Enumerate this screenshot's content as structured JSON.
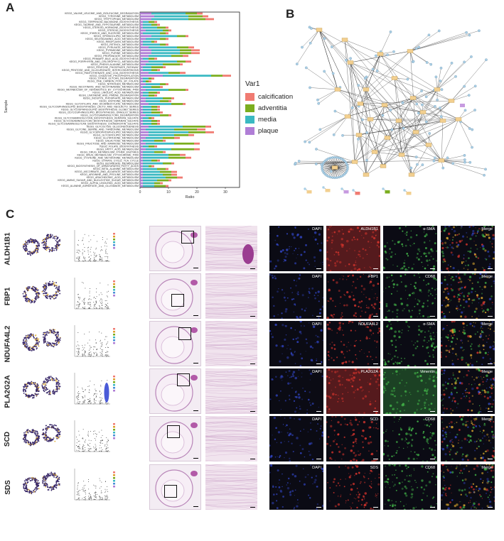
{
  "panels": {
    "a": "A",
    "b": "B",
    "c": "C"
  },
  "colors": {
    "calcification": "#F07B72",
    "adventitia": "#7BAE1F",
    "media": "#3BB9C2",
    "plaque": "#B07ED6",
    "node": "#a9cfe6",
    "hub": "#f2cf8f",
    "if_dapi": "#3347c8",
    "if_red": "#e0362e",
    "if_green": "#46c04c"
  },
  "legend": {
    "title": "Var1",
    "items": [
      {
        "label": "calcification",
        "color": "#F07B72"
      },
      {
        "label": "adventitia",
        "color": "#7BAE1F"
      },
      {
        "label": "media",
        "color": "#3BB9C2"
      },
      {
        "label": "plaque",
        "color": "#B07ED6"
      }
    ]
  },
  "chart_data": {
    "type": "bar",
    "orientation": "horizontal",
    "stacked": true,
    "xlabel": "Ratio",
    "ylabel": "Sample",
    "xlim": [
      0,
      35
    ],
    "xticks": [
      0,
      10,
      20,
      30
    ],
    "series_order": [
      "plaque",
      "media",
      "adventitia",
      "calcification"
    ],
    "categories": [
      "KEGG_VALINE_LEUCINE_AND_ISOLEUCINE_DEGRADATION",
      "KEGG_TYROSINE_METABOLISM",
      "KEGG_TRYPTOPHAN_METABOLISM",
      "KEGG_TERPENOID_BACKBONE_BIOSYNTHESIS",
      "KEGG_TAURINE_AND_HYPOTAURINE_METABOLISM",
      "KEGG_STEROID_HORMONE_BIOSYNTHESIS",
      "KEGG_STEROID_BIOSYNTHESIS",
      "KEGG_STARCH_AND_SUCROSE_METABOLISM",
      "KEGG_SPHINGOLIPID_METABOLISM",
      "KEGG_SELENOAMINO_ACID_METABOLISM",
      "KEGG_RIBOFLAVIN_METABOLISM",
      "KEGG_RETINOL_METABOLISM",
      "KEGG_PYRUVATE_METABOLISM",
      "KEGG_PYRIMIDINE_METABOLISM",
      "KEGG_PURINE_METABOLISM",
      "KEGG_PROPANOATE_METABOLISM",
      "KEGG_PRIMARY_BILE_ACID_BIOSYNTHESIS",
      "KEGG_PORPHYRIN_AND_CHLOROPHYLL_METABOLISM",
      "KEGG_PHENYLALANINE_METABOLISM",
      "KEGG_PENTOSE_PHOSPHATE_PATHWAY",
      "KEGG_PENTOSE_AND_GLUCURONATE_INTERCONVERSIONS",
      "KEGG_PANTOTHENATE_AND_COA_BIOSYNTHESIS",
      "KEGG_OXIDATIVE_PHOSPHORYLATION",
      "KEGG_OTHER_GLYCAN_DEGRADATION",
      "KEGG_ONE_CARBON_POOL_BY_FOLATE",
      "KEGG_NITROGEN_METABOLISM",
      "KEGG_NICOTINATE_AND_NICOTINAMIDE_METABOLISM",
      "KEGG_METABOLISM_OF_XENOBIOTICS_BY_CYTOCHROME_P450",
      "KEGG_LINOLEIC_ACID_METABOLISM",
      "KEGG_LIMONENE_AND_PINENE_DEGRADATION",
      "KEGG_INOSITOL_PHOSPHATE_METABOLISM",
      "KEGG_HISTIDINE_METABOLISM",
      "KEGG_GLYOXYLATE_AND_DICARBOXYLATE_METABOLISM",
      "KEGG_GLYCOSPHINGOLIPID_BIOSYNTHESIS_LACTO_AND_NEOLACTO_SERIES",
      "KEGG_GLYCOSPHINGOLIPID_BIOSYNTHESIS_GLOBO_SERIES",
      "KEGG_GLYCOSPHINGOLIPID_BIOSYNTHESIS_GANGLIO_SERIES",
      "KEGG_GLYCOSAMINOGLYCAN_DEGRADATION",
      "KEGG_GLYCOSAMINOGLYCAN_BIOSYNTHESIS_KERATAN_SULFATE",
      "KEGG_GLYCOSAMINOGLYCAN_BIOSYNTHESIS_HEPARAN_SULFATE",
      "KEGG_GLYCOSAMINOGLYCAN_BIOSYNTHESIS_CHONDROITIN_SULFATE",
      "KEGG_GLYCOLYSIS_GLUCONEOGENESIS",
      "KEGG_GLYCINE_SERINE_AND_THREONINE_METABOLISM",
      "KEGG_GLYCEROPHOSPHOLIPID_METABOLISM",
      "KEGG_GLYCEROLIPID_METABOLISM",
      "KEGG_GLUTATHIONE_METABOLISM",
      "KEGG_GALACTOSE_METABOLISM",
      "KEGG_FRUCTOSE_AND_MANNOSE_METABOLISM",
      "KEGG_FOLATE_BIOSYNTHESIS",
      "KEGG_FATTY_ACID_METABOLISM",
      "KEGG_DRUG_METABOLISM_OTHER_ENZYMES",
      "KEGG_DRUG_METABOLISM_CYTOCHROME_P450",
      "KEGG_CYSTEINE_AND_METHIONINE_METABOLISM",
      "KEGG_CITRATE_CYCLE_TCA_CYCLE",
      "KEGG_BUTANOATE_METABOLISM",
      "KEGG_BIOSYNTHESIS_OF_UNSATURATED_FATTY_ACIDS",
      "KEGG_BETA_ALANINE_METABOLISM",
      "KEGG_ASCORBATE_AND_ALDARATE_METABOLISM",
      "KEGG_ARGININE_AND_PROLINE_METABOLISM",
      "KEGG_ARACHIDONIC_ACID_METABOLISM",
      "KEGG_AMINO_SUGAR_AND_NUCLEOTIDE_SUGAR_METABOLISM",
      "KEGG_ALPHA_LINOLENIC_ACID_METABOLISM",
      "KEGG_ALANINE_ASPARTATE_AND_GLUTAMATE_METABOLISM"
    ],
    "series": [
      {
        "name": "plaque",
        "values": [
          4,
          5,
          4,
          1,
          1,
          1,
          2,
          1,
          4,
          2,
          1,
          1,
          3,
          4,
          4,
          3,
          1,
          3,
          2,
          1,
          1,
          3,
          8,
          1,
          1,
          2,
          1,
          2,
          1,
          1,
          2,
          2,
          3,
          1,
          1,
          1,
          2,
          1,
          1,
          1,
          3,
          2,
          3,
          3,
          2,
          1,
          2,
          1,
          2,
          1,
          1,
          1,
          1,
          1,
          1,
          1,
          1,
          1,
          1,
          1,
          1,
          1
        ]
      },
      {
        "name": "media",
        "values": [
          12,
          12,
          13,
          2,
          3,
          5,
          6,
          6,
          9,
          5,
          3,
          6,
          10,
          10,
          10,
          8,
          2,
          10,
          6,
          3,
          3,
          7,
          17,
          2,
          1,
          5,
          3,
          8,
          2,
          2,
          6,
          5,
          8,
          3,
          3,
          3,
          5,
          2,
          3,
          3,
          12,
          10,
          14,
          9,
          6,
          4,
          10,
          2,
          9,
          4,
          9,
          9,
          3,
          7,
          2,
          5,
          6,
          7,
          8,
          5,
          4,
          4
        ]
      },
      {
        "name": "adventitia",
        "values": [
          4,
          5,
          6,
          2,
          2,
          3,
          2,
          2,
          3,
          2,
          1,
          2,
          4,
          4,
          4,
          4,
          2,
          3,
          6,
          4,
          2,
          4,
          4,
          1,
          1,
          2,
          3,
          6,
          3,
          2,
          3,
          3,
          4,
          2,
          2,
          3,
          3,
          1,
          2,
          2,
          8,
          8,
          6,
          5,
          4,
          3,
          7,
          2,
          8,
          3,
          4,
          6,
          2,
          3,
          1,
          3,
          4,
          3,
          4,
          4,
          2,
          4
        ]
      },
      {
        "name": "calcification",
        "values": [
          2,
          2,
          3,
          1,
          1,
          1,
          1,
          1,
          1,
          1,
          1,
          1,
          2,
          3,
          3,
          2,
          1,
          2,
          1,
          1,
          1,
          2,
          3,
          1,
          1,
          1,
          1,
          1,
          1,
          1,
          1,
          1,
          1,
          1,
          1,
          1,
          1,
          1,
          1,
          1,
          2,
          3,
          3,
          2,
          2,
          1,
          2,
          1,
          2,
          1,
          2,
          2,
          1,
          1,
          1,
          1,
          2,
          2,
          2,
          1,
          1,
          1
        ]
      }
    ]
  },
  "panel_c": {
    "genes": [
      "ALDH1B1",
      "FBP1",
      "NDUFA4L2",
      "PLA2G2A",
      "SCD",
      "SDS"
    ],
    "if_labels": [
      [
        "DAPI",
        "ALDH1B1",
        "α-SMA",
        "Merge"
      ],
      [
        "DAPI",
        "FBP1",
        "CD68",
        "Merge"
      ],
      [
        "DAPI",
        "NDUFA4L2",
        "α-SMA",
        "Merge"
      ],
      [
        "DAPI",
        "PLA2G2A",
        "Vimentin",
        "Merge"
      ],
      [
        "DAPI",
        "SCD",
        "CD68",
        "Merge"
      ],
      [
        "DAPI",
        "SDS",
        "CD68",
        "Merge"
      ]
    ]
  }
}
